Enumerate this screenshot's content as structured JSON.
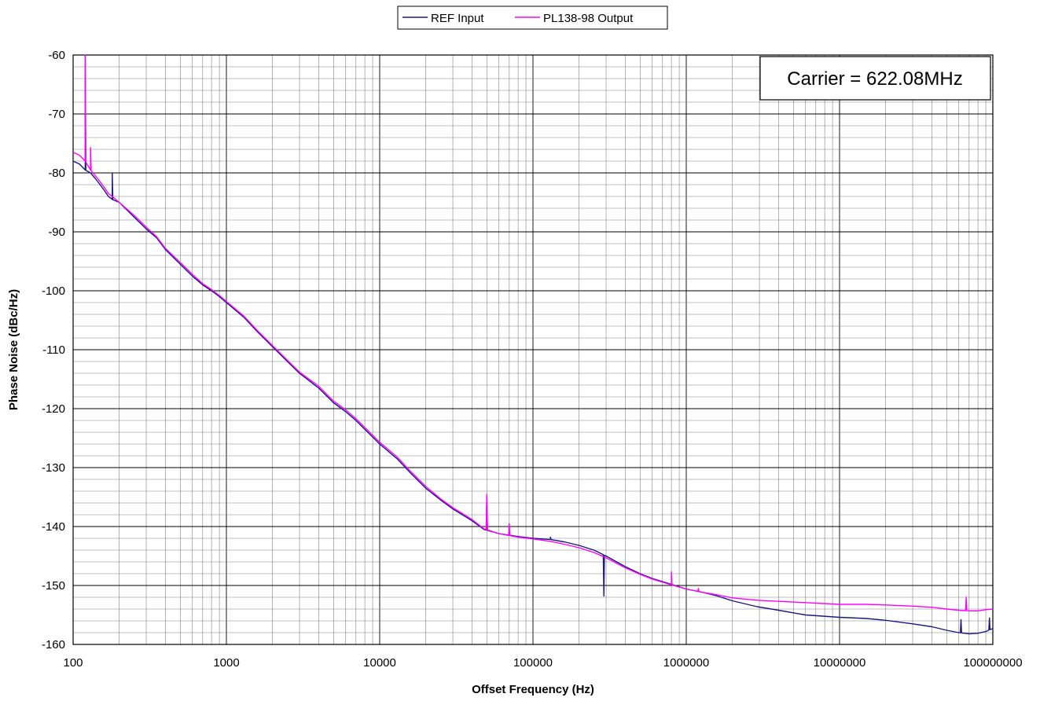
{
  "chart_data": {
    "type": "line",
    "title": "",
    "xlabel": "Offset Frequency (Hz)",
    "ylabel": "Phase Noise (dBc/Hz)",
    "xscale": "log",
    "xlim": [
      100,
      100000000
    ],
    "ylim": [
      -160,
      -60
    ],
    "grid": true,
    "legend_position": "top-center",
    "annotation": "Carrier = 622.08MHz",
    "x_ticks": [
      "100",
      "1000",
      "10000",
      "100000",
      "1000000",
      "10000000",
      "100000000"
    ],
    "y_ticks": [
      "-60",
      "-70",
      "-80",
      "-90",
      "-100",
      "-110",
      "-120",
      "-130",
      "-140",
      "-150",
      "-160"
    ],
    "series": [
      {
        "name": "REF Input",
        "color": "#1a1a80",
        "x": [
          100,
          110,
          120,
          130,
          140,
          150,
          160,
          170,
          180,
          200,
          250,
          300,
          350,
          400,
          500,
          600,
          700,
          800,
          900,
          1000,
          1300,
          1600,
          2000,
          2500,
          3000,
          4000,
          5000,
          6000,
          7000,
          8000,
          10000,
          13000,
          16000,
          20000,
          25000,
          30000,
          40000,
          48000,
          60000,
          80000,
          100000,
          130000,
          160000,
          200000,
          250000,
          300000,
          400000,
          500000,
          600000,
          800000,
          1000000,
          1300000,
          1600000,
          2000000,
          2900000,
          4000000,
          6000000,
          10000000,
          15000000,
          20000000,
          30000000,
          40000000,
          50000000,
          60000000,
          70000000,
          80000000,
          90000000,
          100000000
        ],
        "y": [
          -78,
          -78.5,
          -79.5,
          -80,
          -81,
          -82,
          -83,
          -84,
          -84.5,
          -85,
          -87.5,
          -89.5,
          -91,
          -93,
          -95.5,
          -97.5,
          -99,
          -100,
          -101,
          -102,
          -104.5,
          -107,
          -109.5,
          -112,
          -114,
          -116.5,
          -119,
          -120.5,
          -122,
          -123.5,
          -126,
          -128.5,
          -131,
          -133.5,
          -135.5,
          -137,
          -139,
          -140.5,
          -141.2,
          -141.7,
          -142,
          -142.2,
          -142.6,
          -143.2,
          -144,
          -145,
          -146.8,
          -148,
          -148.8,
          -149.8,
          -150.6,
          -151.2,
          -151.8,
          -152.6,
          -153.6,
          -154.2,
          -155,
          -155.4,
          -155.6,
          -155.9,
          -156.5,
          -157,
          -157.6,
          -158,
          -158.2,
          -158.1,
          -157.8,
          -157.3
        ],
        "spikes": [
          [
            120,
            -60
          ],
          [
            180,
            -80
          ],
          [
            50000,
            -134.8
          ],
          [
            130000,
            -141.8
          ],
          [
            290000,
            -151.8
          ],
          [
            62000000,
            -155.8
          ],
          [
            95000000,
            -155.5
          ]
        ]
      },
      {
        "name": "PL138-98 Output",
        "color": "#ff00ff",
        "x": [
          100,
          110,
          120,
          130,
          140,
          150,
          160,
          170,
          180,
          200,
          250,
          300,
          350,
          400,
          500,
          600,
          700,
          800,
          900,
          1000,
          1300,
          1600,
          2000,
          2500,
          3000,
          4000,
          5000,
          6000,
          7000,
          8000,
          10000,
          13000,
          16000,
          20000,
          25000,
          30000,
          40000,
          48000,
          60000,
          80000,
          100000,
          130000,
          160000,
          200000,
          250000,
          300000,
          400000,
          500000,
          600000,
          800000,
          1000000,
          1300000,
          1600000,
          2000000,
          2900000,
          4000000,
          6000000,
          10000000,
          15000000,
          20000000,
          30000000,
          40000000,
          50000000,
          60000000,
          70000000,
          80000000,
          90000000,
          100000000
        ],
        "y": [
          -76.5,
          -77,
          -78,
          -79.5,
          -80.5,
          -81.5,
          -82.5,
          -83.5,
          -84,
          -85,
          -87.2,
          -89.2,
          -90.8,
          -92.8,
          -95.2,
          -97.2,
          -98.8,
          -99.8,
          -100.8,
          -101.8,
          -104.3,
          -106.8,
          -109.3,
          -111.8,
          -113.8,
          -116.2,
          -118.7,
          -120.2,
          -121.7,
          -123.2,
          -125.7,
          -128.2,
          -130.7,
          -133.2,
          -135.3,
          -136.8,
          -138.8,
          -140.4,
          -141.2,
          -141.8,
          -142.1,
          -142.5,
          -143,
          -143.6,
          -144.4,
          -145.3,
          -147,
          -148.1,
          -148.9,
          -149.9,
          -150.6,
          -151.2,
          -151.6,
          -152.1,
          -152.5,
          -152.7,
          -152.9,
          -153.2,
          -153.2,
          -153.3,
          -153.5,
          -153.7,
          -154,
          -154.2,
          -154.3,
          -154.3,
          -154.1,
          -154
        ],
        "spikes": [
          [
            120,
            -60
          ],
          [
            130,
            -75.7
          ],
          [
            50000,
            -134.5
          ],
          [
            70000,
            -139.5
          ],
          [
            800000,
            -147.7
          ],
          [
            1200000,
            -150.5
          ],
          [
            67000000,
            -152
          ]
        ]
      }
    ]
  }
}
